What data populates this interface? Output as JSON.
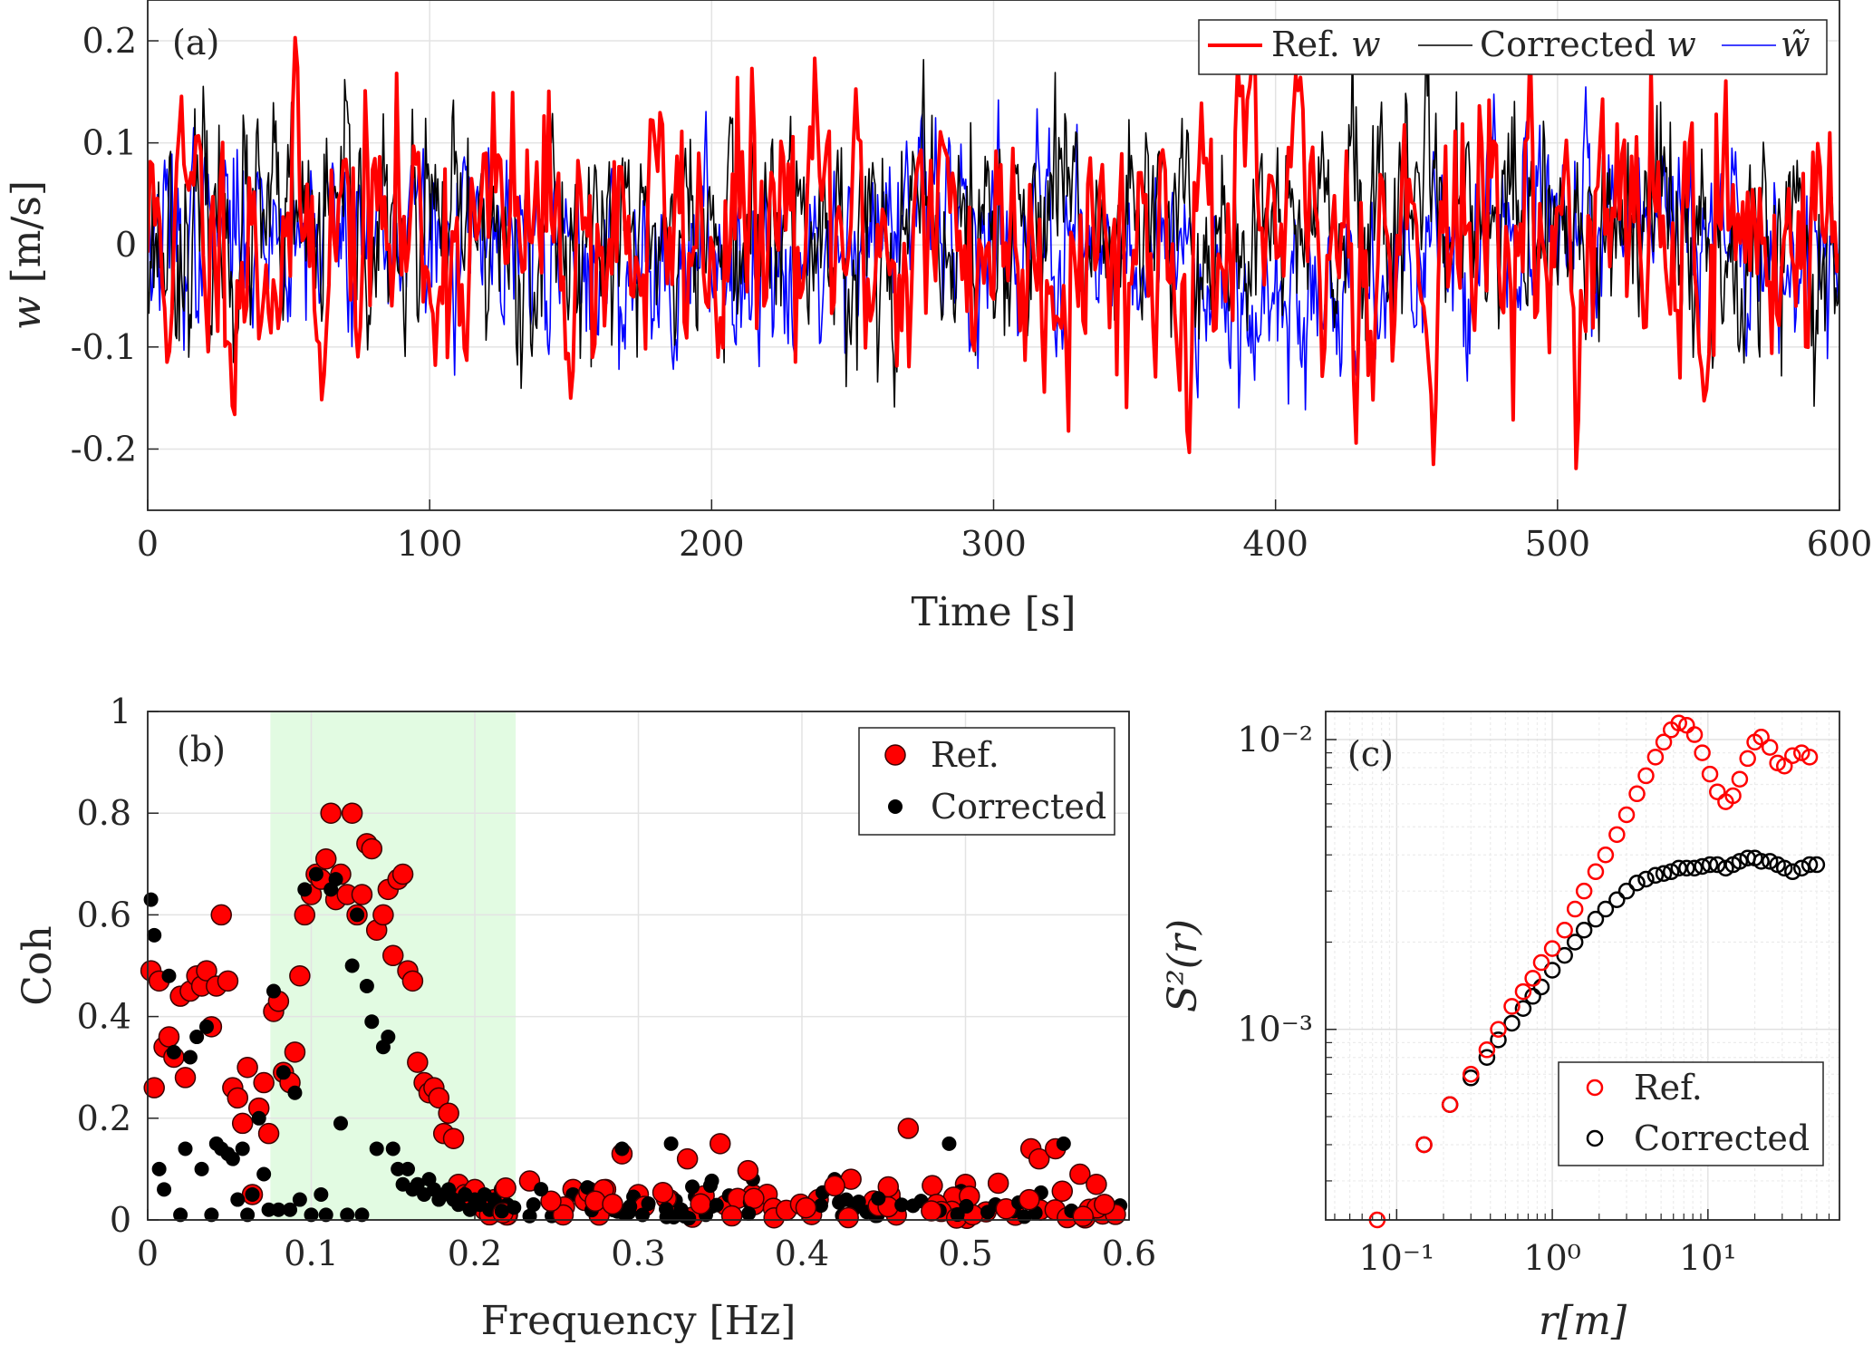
{
  "chart_data": [
    {
      "id": "a",
      "type": "line",
      "panel_label": "(a)",
      "xlabel": "Time [s]",
      "ylabel": "w [m/s]",
      "ylabel_var": "w",
      "ylabel_unit": " [m/s]",
      "xlim": [
        0,
        600
      ],
      "ylim": [
        -0.26,
        0.24
      ],
      "xticks": [
        0,
        100,
        200,
        300,
        400,
        500,
        600
      ],
      "xtick_labels": [
        "0",
        "100",
        "200",
        "300",
        "400",
        "500",
        "600"
      ],
      "yticks": [
        -0.2,
        -0.1,
        0,
        0.1,
        0.2
      ],
      "ytick_labels": [
        "-0.2",
        "-0.1",
        "0",
        "0.1",
        "0.2"
      ],
      "grid": true,
      "legend_position": "top-right",
      "series": [
        {
          "name": "Ref. w",
          "legend_prefix": "Ref. ",
          "legend_var": "w",
          "color": "#ff0000",
          "width": 4,
          "std": 0.075,
          "mean": 0.01,
          "seed": 11,
          "n": 700
        },
        {
          "name": "Corrected w",
          "legend_prefix": "Corrected ",
          "legend_var": "w",
          "color": "#000000",
          "width": 1.6,
          "std": 0.055,
          "mean": 0.01,
          "seed": 23,
          "n": 1400
        },
        {
          "name": "w̃",
          "legend_prefix": "",
          "legend_var": "w̃",
          "color": "#0000ff",
          "width": 1.6,
          "std": 0.045,
          "mean": 0.0,
          "seed": 37,
          "n": 1400
        }
      ]
    },
    {
      "id": "b",
      "type": "scatter",
      "panel_label": "(b)",
      "xlabel": "Frequency [Hz]",
      "ylabel": "Coh",
      "xlim": [
        0,
        0.6
      ],
      "ylim": [
        0,
        1
      ],
      "xticks": [
        0,
        0.1,
        0.2,
        0.3,
        0.4,
        0.5,
        0.6
      ],
      "xtick_labels": [
        "0",
        "0.1",
        "0.2",
        "0.3",
        "0.4",
        "0.5",
        "0.6"
      ],
      "yticks": [
        0,
        0.2,
        0.4,
        0.6,
        0.8,
        1
      ],
      "ytick_labels": [
        "0",
        "0.2",
        "0.4",
        "0.6",
        "0.8",
        "1"
      ],
      "grid": true,
      "shaded_band": {
        "x0": 0.075,
        "x1": 0.225,
        "color": "#e2fbe2"
      },
      "legend_position": "top-right",
      "series": [
        {
          "name": "Ref.",
          "color": "#ff0000",
          "x": [
            0.002,
            0.004,
            0.007,
            0.01,
            0.013,
            0.016,
            0.02,
            0.023,
            0.026,
            0.03,
            0.033,
            0.036,
            0.039,
            0.042,
            0.045,
            0.049,
            0.052,
            0.055,
            0.058,
            0.061,
            0.064,
            0.068,
            0.071,
            0.074,
            0.077,
            0.08,
            0.083,
            0.087,
            0.09,
            0.093,
            0.096,
            0.1,
            0.103,
            0.106,
            0.109,
            0.112,
            0.115,
            0.118,
            0.122,
            0.125,
            0.128,
            0.131,
            0.134,
            0.137,
            0.14,
            0.144,
            0.147,
            0.15,
            0.153,
            0.156,
            0.159,
            0.162,
            0.165,
            0.169,
            0.172,
            0.175,
            0.178,
            0.181,
            0.184,
            0.187,
            0.19,
            0.194,
            0.197,
            0.2,
            0.203,
            0.206,
            0.209,
            0.212,
            0.216,
            0.22,
            0.26,
            0.28,
            0.29,
            0.3,
            0.33,
            0.35,
            0.37,
            0.41,
            0.43,
            0.465,
            0.5,
            0.54,
            0.545,
            0.555,
            0.57,
            0.58
          ],
          "y": [
            0.49,
            0.26,
            0.47,
            0.34,
            0.36,
            0.32,
            0.44,
            0.28,
            0.45,
            0.48,
            0.46,
            0.49,
            0.38,
            0.46,
            0.6,
            0.47,
            0.26,
            0.24,
            0.19,
            0.3,
            0.05,
            0.22,
            0.27,
            0.17,
            0.41,
            0.43,
            0.29,
            0.27,
            0.33,
            0.48,
            0.6,
            0.64,
            0.68,
            0.67,
            0.71,
            0.8,
            0.63,
            0.68,
            0.64,
            0.8,
            0.6,
            0.64,
            0.74,
            0.73,
            0.57,
            0.6,
            0.65,
            0.52,
            0.67,
            0.68,
            0.49,
            0.47,
            0.31,
            0.27,
            0.25,
            0.26,
            0.24,
            0.17,
            0.21,
            0.16,
            0.07,
            0.05,
            0.05,
            0.06,
            0.03,
            0.02,
            0.01,
            0.04,
            0.02,
            0.01,
            0.06,
            0.06,
            0.13,
            0.05,
            0.12,
            0.15,
            0.05,
            0.04,
            0.08,
            0.18,
            0.07,
            0.14,
            0.12,
            0.14,
            0.09,
            0.07
          ]
        },
        {
          "name": "Corrected",
          "color": "#000000",
          "x": [
            0.002,
            0.004,
            0.007,
            0.01,
            0.013,
            0.016,
            0.02,
            0.023,
            0.026,
            0.03,
            0.033,
            0.036,
            0.039,
            0.042,
            0.045,
            0.049,
            0.052,
            0.055,
            0.058,
            0.061,
            0.064,
            0.068,
            0.071,
            0.074,
            0.077,
            0.08,
            0.083,
            0.087,
            0.09,
            0.093,
            0.096,
            0.1,
            0.103,
            0.106,
            0.109,
            0.112,
            0.115,
            0.118,
            0.122,
            0.125,
            0.128,
            0.131,
            0.134,
            0.137,
            0.14,
            0.144,
            0.147,
            0.15,
            0.153,
            0.156,
            0.159,
            0.162,
            0.165,
            0.169,
            0.172,
            0.175,
            0.178,
            0.181,
            0.184,
            0.187,
            0.19,
            0.194,
            0.197,
            0.2,
            0.203,
            0.206,
            0.209,
            0.212,
            0.216,
            0.22,
            0.26,
            0.29,
            0.32,
            0.37,
            0.42,
            0.49,
            0.56
          ],
          "y": [
            0.63,
            0.56,
            0.1,
            0.06,
            0.48,
            0.33,
            0.01,
            0.14,
            0.32,
            0.36,
            0.1,
            0.38,
            0.01,
            0.15,
            0.14,
            0.13,
            0.12,
            0.04,
            0.14,
            0.01,
            0.05,
            0.2,
            0.09,
            0.02,
            0.45,
            0.02,
            0.29,
            0.02,
            0.25,
            0.04,
            0.65,
            0.01,
            0.68,
            0.05,
            0.01,
            0.65,
            0.67,
            0.19,
            0.01,
            0.5,
            0.6,
            0.01,
            0.46,
            0.39,
            0.14,
            0.34,
            0.36,
            0.14,
            0.1,
            0.07,
            0.1,
            0.06,
            0.07,
            0.05,
            0.08,
            0.06,
            0.04,
            0.05,
            0.06,
            0.04,
            0.03,
            0.05,
            0.02,
            0.04,
            0.03,
            0.05,
            0.02,
            0.04,
            0.06,
            0.03,
            0.05,
            0.14,
            0.15,
            0.08,
            0.08,
            0.15,
            0.15
          ]
        }
      ]
    },
    {
      "id": "c",
      "type": "scatter",
      "panel_label": "(c)",
      "xlabel": "r[m]",
      "ylabel": "S²(r)",
      "xscale": "log",
      "yscale": "log",
      "xlim": [
        0.035,
        70
      ],
      "ylim": [
        0.00022,
        0.0125
      ],
      "xticks": [
        0.1,
        1,
        10
      ],
      "xtick_labels": [
        "10⁻¹",
        "10⁰",
        "10¹"
      ],
      "yticks": [
        0.001,
        0.01
      ],
      "ytick_labels": [
        "10⁻³",
        "10⁻²"
      ],
      "grid": true,
      "legend_position": "bottom-right",
      "series": [
        {
          "name": "Ref.",
          "color": "#ff0000",
          "marker": "open-circle",
          "x": [
            0.075,
            0.15,
            0.22,
            0.3,
            0.38,
            0.45,
            0.55,
            0.65,
            0.75,
            0.85,
            1.0,
            1.2,
            1.4,
            1.6,
            1.9,
            2.2,
            2.6,
            3.0,
            3.5,
            4.0,
            4.6,
            5.2,
            5.8,
            6.5,
            7.3,
            8.2,
            9.2,
            10.3,
            11.5,
            13,
            14.5,
            16,
            18,
            20,
            22,
            25,
            28,
            31,
            35,
            40,
            45
          ],
          "y": [
            0.00022,
            0.0004,
            0.00055,
            0.0007,
            0.00085,
            0.001,
            0.0012,
            0.00135,
            0.0015,
            0.0017,
            0.0019,
            0.0022,
            0.0026,
            0.003,
            0.0035,
            0.004,
            0.0047,
            0.0055,
            0.0065,
            0.0075,
            0.0087,
            0.0098,
            0.0108,
            0.0114,
            0.0112,
            0.0104,
            0.009,
            0.0076,
            0.0066,
            0.0061,
            0.0064,
            0.0073,
            0.0086,
            0.0098,
            0.0102,
            0.0094,
            0.0083,
            0.0081,
            0.0088,
            0.009,
            0.0087
          ]
        },
        {
          "name": "Corrected",
          "color": "#000000",
          "marker": "open-circle",
          "x": [
            0.15,
            0.22,
            0.3,
            0.38,
            0.45,
            0.55,
            0.65,
            0.75,
            0.85,
            1.0,
            1.2,
            1.4,
            1.6,
            1.9,
            2.2,
            2.6,
            3.0,
            3.5,
            4.0,
            4.6,
            5.2,
            5.8,
            6.5,
            7.3,
            8.2,
            9.2,
            10.3,
            11.5,
            13,
            14.5,
            16,
            18,
            20,
            22,
            25,
            28,
            31,
            35,
            40,
            45,
            50
          ],
          "y": [
            0.0004,
            0.00055,
            0.00068,
            0.0008,
            0.00092,
            0.00105,
            0.00118,
            0.0013,
            0.0014,
            0.0016,
            0.0018,
            0.002,
            0.0022,
            0.0024,
            0.0026,
            0.0028,
            0.003,
            0.0032,
            0.0033,
            0.0034,
            0.00345,
            0.0035,
            0.0036,
            0.0036,
            0.0036,
            0.00365,
            0.0037,
            0.0037,
            0.0036,
            0.0037,
            0.0038,
            0.0039,
            0.0039,
            0.0038,
            0.0038,
            0.0037,
            0.0036,
            0.0035,
            0.0036,
            0.0037,
            0.0037
          ]
        }
      ]
    }
  ]
}
